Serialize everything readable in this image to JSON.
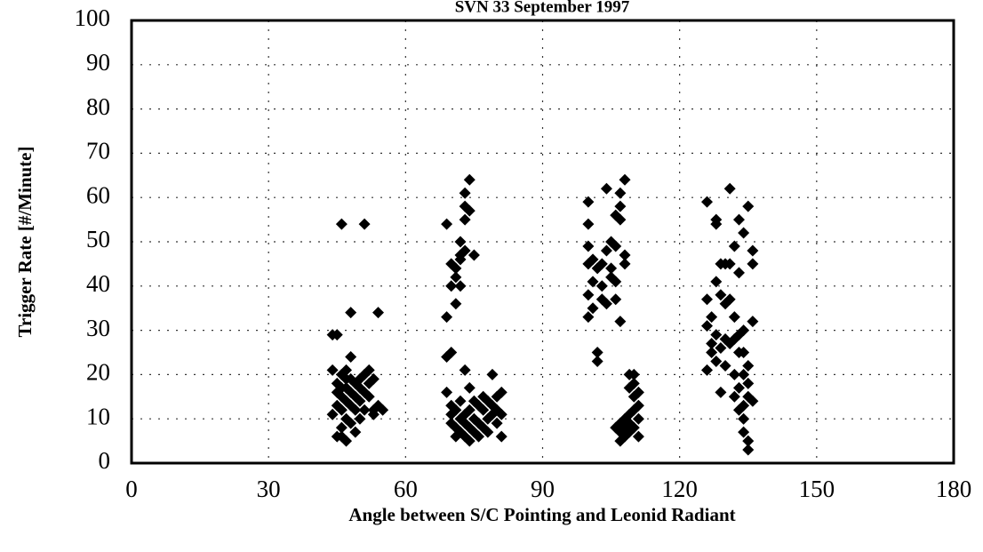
{
  "chart_data": {
    "type": "scatter",
    "title": "SVN 33 September 1997",
    "xlabel": "Angle between S/C Pointing and Leonid Radiant",
    "ylabel": "Trigger Rate [#/Minute]",
    "color": "#000000",
    "marker": "diamond",
    "grid": true,
    "xlim": [
      0,
      180
    ],
    "xticks": [
      0,
      30,
      60,
      90,
      120,
      150,
      180
    ],
    "ylim": [
      0,
      100
    ],
    "yticks": [
      0,
      10,
      20,
      30,
      40,
      50,
      60,
      70,
      80,
      90,
      100
    ],
    "x": [
      44,
      45,
      46,
      51,
      48,
      54,
      48,
      44,
      45,
      45,
      46,
      46,
      46,
      46,
      46,
      47,
      47,
      47,
      47,
      47,
      48,
      48,
      48,
      48,
      49,
      49,
      49,
      49,
      50,
      50,
      50,
      51,
      51,
      51,
      52,
      52,
      52,
      53,
      53,
      53,
      54,
      55,
      45,
      46,
      47,
      50,
      44,
      45,
      69,
      69,
      69,
      70,
      70,
      70,
      71,
      71,
      71,
      72,
      72,
      72,
      73,
      73,
      73,
      73,
      74,
      74,
      75,
      72,
      69,
      70,
      70,
      70,
      71,
      71,
      71,
      72,
      72,
      72,
      73,
      73,
      73,
      73,
      74,
      74,
      74,
      74,
      75,
      75,
      76,
      76,
      76,
      77,
      77,
      77,
      78,
      78,
      79,
      79,
      79,
      80,
      80,
      80,
      81,
      81,
      81,
      78,
      75,
      100,
      100,
      100,
      100,
      100,
      100,
      101,
      101,
      101,
      102,
      102,
      102,
      103,
      103,
      103,
      104,
      104,
      104,
      105,
      105,
      105,
      106,
      106,
      106,
      107,
      107,
      107,
      108,
      107,
      108,
      108,
      106,
      106,
      107,
      107,
      107,
      108,
      108,
      108,
      109,
      109,
      109,
      109,
      110,
      110,
      110,
      110,
      110,
      111,
      111,
      111,
      111,
      109,
      126,
      126,
      126,
      126,
      127,
      127,
      127,
      128,
      128,
      128,
      128,
      128,
      129,
      129,
      129,
      129,
      130,
      130,
      130,
      130,
      131,
      131,
      131,
      131,
      132,
      132,
      132,
      132,
      132,
      133,
      133,
      133,
      133,
      133,
      133,
      134,
      134,
      134,
      134,
      134,
      134,
      135,
      135,
      135,
      135,
      135,
      135,
      136,
      136,
      136,
      136,
      134
    ],
    "values": [
      29,
      29,
      54,
      54,
      34,
      34,
      24,
      11,
      16,
      18,
      20,
      15,
      12,
      8,
      6,
      5,
      17,
      14,
      10,
      21,
      16,
      19,
      13,
      9,
      18,
      15,
      12,
      7,
      17,
      14,
      19,
      16,
      12,
      20,
      21,
      15,
      18,
      19,
      12,
      11,
      13,
      12,
      6,
      17,
      19,
      10,
      21,
      13,
      54,
      33,
      24,
      25,
      40,
      45,
      42,
      44,
      36,
      50,
      46,
      47,
      48,
      55,
      58,
      61,
      64,
      57,
      47,
      40,
      16,
      13,
      11,
      9,
      12,
      8,
      6,
      10,
      14,
      7,
      21,
      11,
      9,
      6,
      12,
      17,
      8,
      5,
      10,
      7,
      13,
      9,
      6,
      12,
      8,
      15,
      10,
      14,
      11,
      13,
      20,
      12,
      9,
      15,
      11,
      6,
      16,
      7,
      14,
      59,
      54,
      49,
      45,
      38,
      33,
      46,
      41,
      35,
      23,
      25,
      44,
      40,
      37,
      45,
      36,
      48,
      62,
      50,
      44,
      42,
      49,
      56,
      37,
      55,
      58,
      61,
      64,
      32,
      47,
      45,
      41,
      8,
      7,
      9,
      5,
      6,
      10,
      8,
      7,
      9,
      11,
      20,
      12,
      15,
      18,
      20,
      8,
      10,
      13,
      16,
      6,
      17,
      59,
      37,
      31,
      21,
      27,
      25,
      33,
      54,
      55,
      41,
      29,
      23,
      45,
      38,
      16,
      26,
      45,
      36,
      28,
      22,
      62,
      45,
      37,
      27,
      49,
      33,
      28,
      20,
      15,
      55,
      43,
      29,
      25,
      17,
      12,
      52,
      30,
      25,
      20,
      10,
      7,
      58,
      22,
      18,
      15,
      5,
      3,
      48,
      45,
      32,
      14,
      13
    ]
  }
}
